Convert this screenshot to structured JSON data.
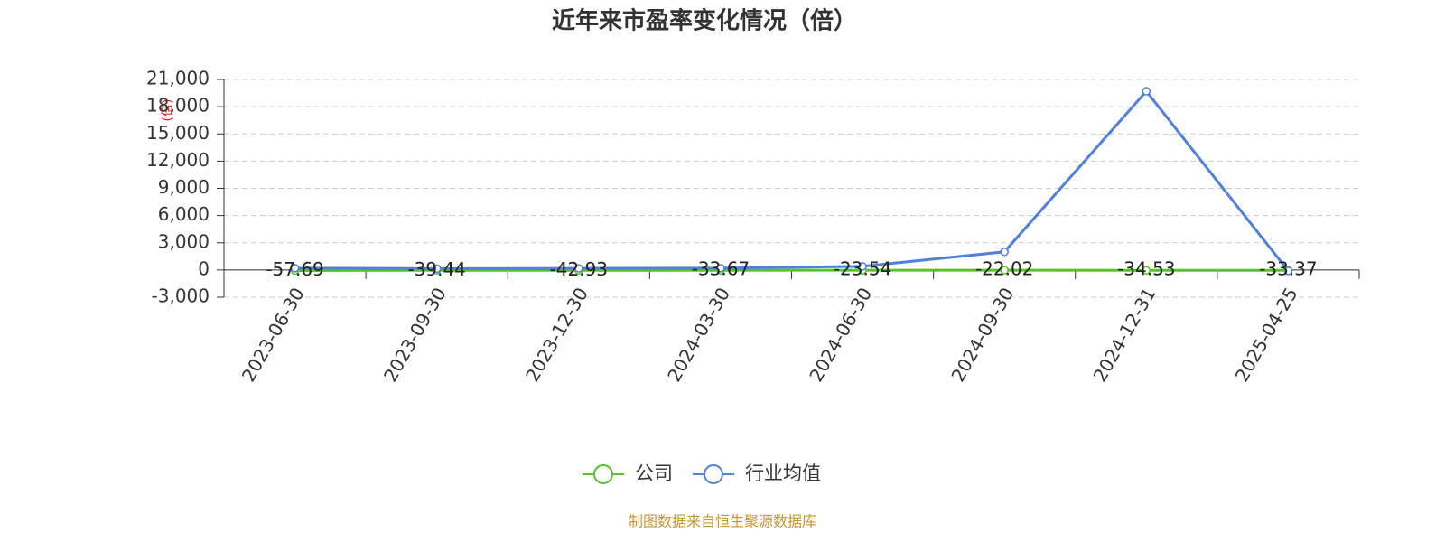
{
  "chart_data": {
    "type": "line",
    "title": "近年来市盈率变化情况（倍）",
    "y_label": "(倍)",
    "source": "制图数据来自恒生聚源数据库",
    "categories": [
      "2023-06-30",
      "2023-09-30",
      "2023-12-30",
      "2024-03-30",
      "2024-06-30",
      "2024-09-30",
      "2024-12-31",
      "2025-04-25"
    ],
    "series": [
      {
        "name": "公司",
        "color": "#58c12b",
        "values": [
          -57.69,
          -39.44,
          -42.93,
          -33.67,
          -23.54,
          -22.02,
          -34.53,
          -33.37
        ],
        "show_labels": true
      },
      {
        "name": "行业均值",
        "color": "#4e80dc",
        "values": [
          200,
          150,
          180,
          200,
          400,
          2000,
          19700,
          -100
        ],
        "show_labels": false
      }
    ],
    "ylim": [
      -3000,
      21000
    ],
    "yticks": [
      {
        "value": -3000,
        "label": "-3,000"
      },
      0,
      {
        "value": 3000,
        "label": "3,000"
      },
      {
        "value": 6000,
        "label": "6,000"
      },
      {
        "value": 9000,
        "label": "9,000"
      },
      {
        "value": 12000,
        "label": "12,000"
      },
      {
        "value": 15000,
        "label": "15,000"
      },
      {
        "value": 18000,
        "label": "18,000"
      },
      {
        "value": 21000,
        "label": "21,000"
      }
    ],
    "grid": true
  }
}
